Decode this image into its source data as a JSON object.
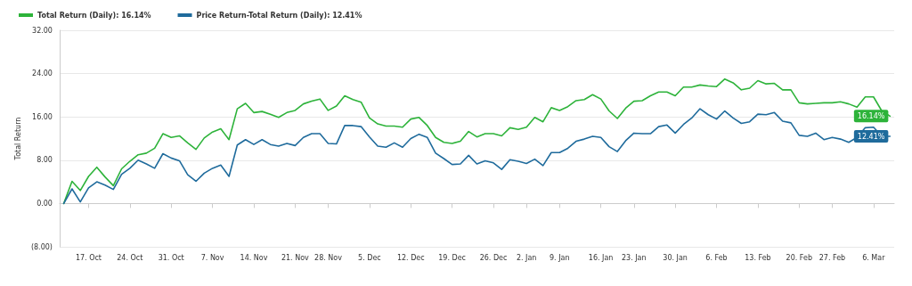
{
  "chart_data": {
    "type": "line",
    "ylabel": "Total Return",
    "legend": "top left",
    "grid": "y",
    "marker": "none",
    "line_style": "solid",
    "categories": [
      null,
      null,
      null,
      "17. Oct",
      null,
      null,
      null,
      null,
      "24. Oct",
      null,
      null,
      null,
      null,
      "31. Oct",
      null,
      null,
      null,
      null,
      "7. Nov",
      null,
      null,
      null,
      null,
      "14. Nov",
      null,
      null,
      null,
      null,
      "21. Nov",
      null,
      null,
      null,
      "28. Nov",
      null,
      null,
      null,
      null,
      "5. Dec",
      null,
      null,
      null,
      null,
      "12. Dec",
      null,
      null,
      null,
      null,
      "19. Dec",
      null,
      null,
      null,
      null,
      "26. Dec",
      null,
      null,
      null,
      "2. Jan",
      null,
      null,
      null,
      "9. Jan",
      null,
      null,
      null,
      null,
      "16. Jan",
      null,
      null,
      null,
      "23. Jan",
      null,
      null,
      null,
      null,
      "30. Jan",
      null,
      null,
      null,
      null,
      "6. Feb",
      null,
      null,
      null,
      null,
      "13. Feb",
      null,
      null,
      null,
      null,
      "20. Feb",
      null,
      null,
      null,
      "27. Feb",
      null,
      null,
      null,
      null,
      "6. Mar",
      null,
      null
    ],
    "ylim": [
      -8,
      32
    ],
    "yticks": [
      {
        "value": -8,
        "label": "(8.00)"
      },
      {
        "value": 0,
        "label": "0.00"
      },
      {
        "value": 8,
        "label": "8.00"
      },
      {
        "value": 16,
        "label": "16.00"
      },
      {
        "value": 24,
        "label": "24.00"
      },
      {
        "value": 32,
        "label": "32.00"
      }
    ],
    "series": [
      {
        "name": "Total Return (Daily): 16.14%",
        "color": "#2db33a",
        "values": [
          0,
          4.1,
          2.4,
          5.0,
          6.7,
          4.9,
          3.3,
          6.4,
          7.8,
          9.0,
          9.3,
          10.2,
          12.9,
          12.2,
          12.5,
          11.2,
          10.0,
          12.1,
          13.2,
          13.8,
          11.8,
          17.5,
          18.5,
          16.8,
          17.0,
          16.5,
          15.9,
          16.8,
          17.2,
          18.4,
          18.9,
          19.3,
          17.2,
          18.0,
          19.9,
          19.2,
          18.7,
          15.8,
          14.7,
          14.3,
          14.3,
          14.1,
          15.6,
          15.9,
          14.4,
          12.2,
          11.3,
          11.1,
          11.5,
          13.3,
          12.3,
          12.9,
          12.9,
          12.5,
          14.0,
          13.7,
          14.1,
          15.9,
          15.1,
          17.7,
          17.2,
          17.9,
          19.0,
          19.2,
          20.1,
          19.3,
          17.1,
          15.7,
          17.6,
          18.9,
          19.0,
          19.9,
          20.6,
          20.6,
          19.9,
          21.5,
          21.5,
          21.9,
          21.7,
          21.6,
          23.0,
          22.3,
          21.0,
          21.3,
          22.7,
          22.1,
          22.2,
          21.0,
          21.0,
          18.6,
          18.4,
          18.5,
          18.6,
          18.6,
          18.8,
          18.4,
          17.8,
          19.7,
          19.7,
          17.1,
          16.14
        ],
        "value_labels": [
          null,
          null,
          null,
          null,
          null,
          null,
          null,
          null,
          null,
          null,
          null,
          null,
          null,
          null,
          null,
          null,
          null,
          null,
          null,
          null,
          null,
          null,
          null,
          null,
          null,
          null,
          null,
          null,
          null,
          null,
          null,
          null,
          null,
          null,
          null,
          null,
          null,
          null,
          null,
          null,
          null,
          null,
          null,
          null,
          null,
          null,
          null,
          null,
          null,
          null,
          null,
          null,
          null,
          null,
          null,
          null,
          null,
          null,
          null,
          null,
          null,
          null,
          null,
          null,
          null,
          null,
          null,
          null,
          null,
          null,
          null,
          null,
          null,
          null,
          null,
          null,
          null,
          null,
          null,
          null,
          null,
          null,
          null,
          null,
          null,
          null,
          null,
          null,
          null,
          null,
          null,
          null,
          null,
          null,
          null,
          null,
          null,
          null,
          null,
          null,
          "16.14%"
        ]
      },
      {
        "name": "Price Return-Total Return (Daily): 12.41%",
        "color": "#1f6b9c",
        "values": [
          0,
          2.7,
          0.3,
          2.9,
          4.0,
          3.4,
          2.6,
          5.4,
          6.5,
          8.0,
          7.3,
          6.5,
          9.2,
          8.4,
          7.9,
          5.3,
          4.1,
          5.6,
          6.5,
          7.1,
          5.0,
          10.8,
          11.8,
          10.9,
          11.8,
          10.9,
          10.6,
          11.1,
          10.7,
          12.2,
          12.9,
          12.9,
          11.1,
          11.0,
          14.4,
          14.4,
          14.2,
          12.3,
          10.6,
          10.4,
          11.2,
          10.4,
          12.0,
          12.8,
          12.2,
          9.3,
          8.3,
          7.2,
          7.3,
          8.9,
          7.3,
          7.9,
          7.5,
          6.3,
          8.1,
          7.8,
          7.4,
          8.2,
          7.0,
          9.4,
          9.4,
          10.2,
          11.5,
          11.9,
          12.4,
          12.2,
          10.5,
          9.6,
          11.6,
          13.0,
          12.9,
          12.9,
          14.2,
          14.5,
          13.0,
          14.6,
          15.8,
          17.5,
          16.4,
          15.6,
          17.1,
          15.8,
          14.8,
          15.1,
          16.5,
          16.4,
          16.8,
          15.2,
          14.9,
          12.6,
          12.4,
          13.0,
          11.8,
          12.2,
          11.9,
          11.3,
          12.2,
          14.0,
          14.1,
          12.4,
          12.41
        ],
        "value_labels": [
          null,
          null,
          null,
          null,
          null,
          null,
          null,
          null,
          null,
          null,
          null,
          null,
          null,
          null,
          null,
          null,
          null,
          null,
          null,
          null,
          null,
          null,
          null,
          null,
          null,
          null,
          null,
          null,
          null,
          null,
          null,
          null,
          null,
          null,
          null,
          null,
          null,
          null,
          null,
          null,
          null,
          null,
          null,
          null,
          null,
          null,
          null,
          null,
          null,
          null,
          null,
          null,
          null,
          null,
          null,
          null,
          null,
          null,
          null,
          null,
          null,
          null,
          null,
          null,
          null,
          null,
          null,
          null,
          null,
          null,
          null,
          null,
          null,
          null,
          null,
          null,
          null,
          null,
          null,
          null,
          null,
          null,
          null,
          null,
          null,
          null,
          null,
          null,
          null,
          null,
          null,
          null,
          null,
          null,
          null,
          null,
          null,
          null,
          null,
          null,
          "12.41%"
        ]
      }
    ]
  }
}
